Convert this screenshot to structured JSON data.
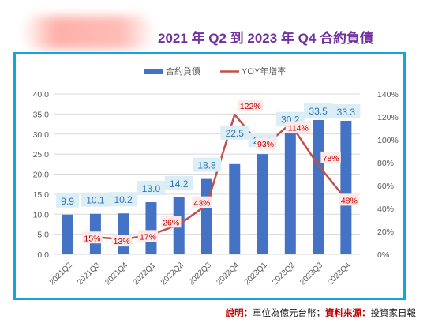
{
  "header": {
    "title": "2021 年 Q2 到 2023 年 Q4 合約負債"
  },
  "footer": {
    "note_label": "說明：",
    "note_text": "單位為億元台幣；",
    "source_label": "資料來源：",
    "source_text": "投資家日報"
  },
  "colors": {
    "bar": "#4472c4",
    "line": "#c0504d",
    "frame": "#10a8d8",
    "title": "#7030a0"
  },
  "chart_data": {
    "type": "bar",
    "categories": [
      "2021Q2",
      "2021Q3",
      "2021Q4",
      "2022Q1",
      "2022Q2",
      "2022Q3",
      "2022Q4",
      "2023Q1",
      "2023Q2",
      "2023Q3",
      "2023Q4"
    ],
    "series": [
      {
        "name": "合約負債",
        "type": "bar",
        "axis": "left",
        "values": [
          9.9,
          10.1,
          10.2,
          13.0,
          14.2,
          18.8,
          22.5,
          25.0,
          30.2,
          33.5,
          33.3
        ],
        "labels": [
          "9.9",
          "10.1",
          "10.2",
          "13.0",
          "14.2",
          "18.8",
          "22.5",
          "25.0",
          "30.2",
          "33.5",
          "33.3"
        ]
      },
      {
        "name": "YOY年增率",
        "type": "line",
        "axis": "right",
        "values": [
          null,
          15,
          13,
          17,
          26,
          43,
          122,
          93,
          114,
          78,
          48
        ],
        "labels": [
          "",
          "15%",
          "13%",
          "17%",
          "26%",
          "43%",
          "122%",
          "93%",
          "114%",
          "78%",
          "48%"
        ]
      }
    ],
    "left_axis": {
      "min": 0,
      "max": 40,
      "ticks": [
        "0.0",
        "5.0",
        "10.0",
        "15.0",
        "20.0",
        "25.0",
        "30.0",
        "35.0",
        "40.0"
      ]
    },
    "right_axis": {
      "min": 0,
      "max": 140,
      "ticks": [
        "0%",
        "20%",
        "40%",
        "60%",
        "80%",
        "100%",
        "120%",
        "140%"
      ]
    },
    "legend_position": "top"
  }
}
